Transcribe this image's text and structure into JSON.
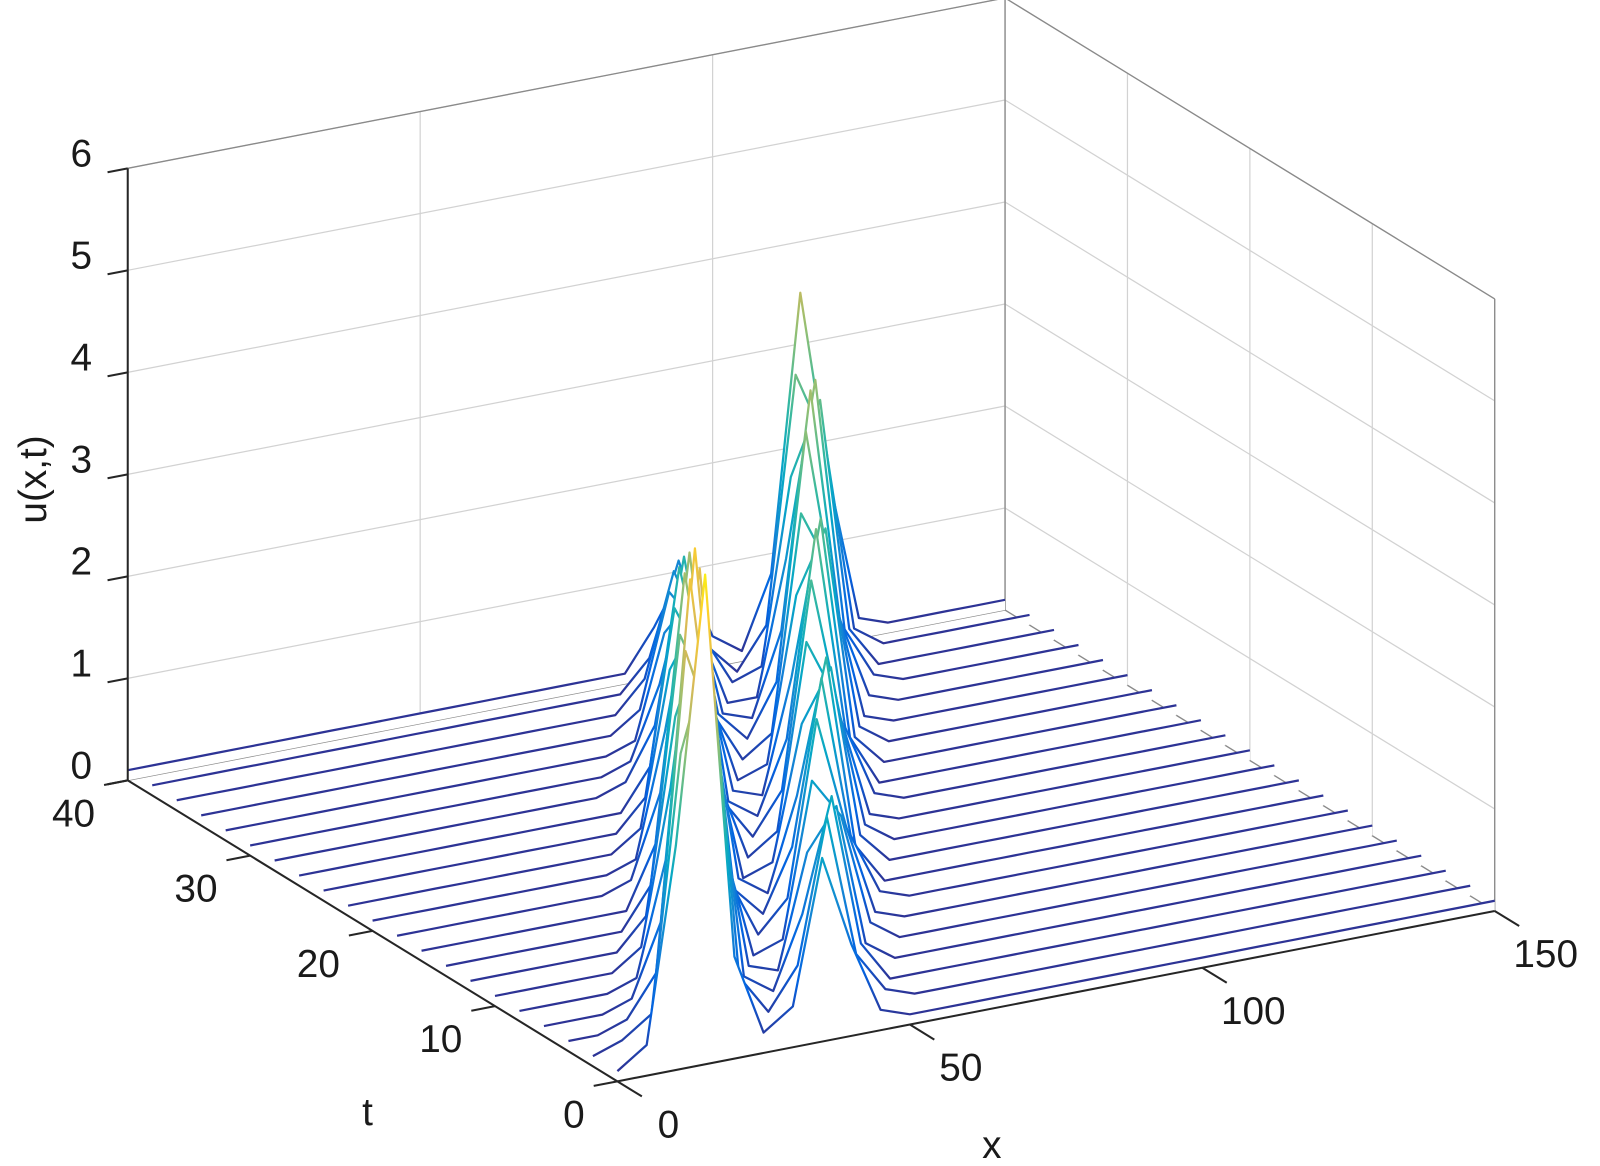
{
  "chart_data": {
    "type": "waterfall",
    "xlabel": "x",
    "ylabel": "t",
    "zlabel": "u(x,t)",
    "x": [
      0,
      5,
      10,
      15,
      20,
      25,
      30,
      35,
      40,
      45,
      50,
      55,
      60,
      65,
      70,
      75,
      80,
      85,
      90,
      95,
      100,
      105,
      110,
      115,
      120,
      125,
      130,
      135,
      140,
      145,
      150
    ],
    "t": [
      0,
      2,
      4,
      6,
      8,
      10,
      12,
      14,
      16,
      18,
      20,
      22,
      24,
      26,
      28,
      30,
      32,
      34,
      36,
      38,
      40
    ],
    "z": [
      [
        0.1,
        0.3,
        2.2,
        4.8,
        1,
        0.2,
        0.4,
        1.8,
        0.9,
        0.2,
        0.1,
        0.1,
        0.1,
        0.1,
        0.1,
        0.1,
        0.1,
        0.1,
        0.1,
        0.1,
        0.1,
        0.1,
        0.1,
        0.1,
        0.1,
        0.1,
        0.1,
        0.1,
        0.1,
        0.1,
        0.1
      ],
      [
        0.1,
        0.2,
        0.4,
        2.9,
        3.9,
        0.6,
        0.2,
        0.6,
        2,
        0.6,
        0.2,
        0.1,
        0.1,
        0.1,
        0.1,
        0.1,
        0.1,
        0.1,
        0.1,
        0.1,
        0.1,
        0.1,
        0.1,
        0.1,
        0.1,
        0.1,
        0.1,
        0.1,
        0.1,
        0.1,
        0.1
      ],
      [
        0.1,
        0.1,
        0.2,
        0.6,
        3.7,
        2.8,
        0.4,
        0.2,
        0.9,
        2,
        0.5,
        0.1,
        0.1,
        0.1,
        0.1,
        0.1,
        0.1,
        0.1,
        0.1,
        0.1,
        0.1,
        0.1,
        0.1,
        0.1,
        0.1,
        0.1,
        0.1,
        0.1,
        0.1,
        0.1,
        0.1
      ],
      [
        0.1,
        0.1,
        0.1,
        0.2,
        0.9,
        4.2,
        1.9,
        0.3,
        0.2,
        1.3,
        1.7,
        0.3,
        0.1,
        0.1,
        0.1,
        0.1,
        0.1,
        0.1,
        0.1,
        0.1,
        0.1,
        0.1,
        0.1,
        0.1,
        0.1,
        0.1,
        0.1,
        0.1,
        0.1,
        0.1,
        0.1
      ],
      [
        0.1,
        0.1,
        0.1,
        0.1,
        0.2,
        1.3,
        4.3,
        1.3,
        0.2,
        0.3,
        1.8,
        1.4,
        0.3,
        0.1,
        0.1,
        0.1,
        0.1,
        0.1,
        0.1,
        0.1,
        0.1,
        0.1,
        0.1,
        0.1,
        0.1,
        0.1,
        0.1,
        0.1,
        0.1,
        0.1,
        0.1
      ],
      [
        0.1,
        0.1,
        0.1,
        0.1,
        0.1,
        0.3,
        1.8,
        3.9,
        0.8,
        0.2,
        0.5,
        2.2,
        1.1,
        0.2,
        0.1,
        0.1,
        0.1,
        0.1,
        0.1,
        0.1,
        0.1,
        0.1,
        0.1,
        0.1,
        0.1,
        0.1,
        0.1,
        0.1,
        0.1,
        0.1,
        0.1
      ],
      [
        0.1,
        0.1,
        0.1,
        0.1,
        0.1,
        0.1,
        0.4,
        2.3,
        3.1,
        0.5,
        0.2,
        0.8,
        2.4,
        0.8,
        0.2,
        0.1,
        0.1,
        0.1,
        0.1,
        0.1,
        0.1,
        0.1,
        0.1,
        0.1,
        0.1,
        0.1,
        0.1,
        0.1,
        0.1,
        0.1,
        0.1
      ],
      [
        0.1,
        0.1,
        0.1,
        0.1,
        0.1,
        0.1,
        0.1,
        0.5,
        2.9,
        2.2,
        0.4,
        0.2,
        1.1,
        2.4,
        0.5,
        0.1,
        0.1,
        0.1,
        0.1,
        0.1,
        0.1,
        0.1,
        0.1,
        0.1,
        0.1,
        0.1,
        0.1,
        0.1,
        0.1,
        0.1,
        0.1
      ],
      [
        0.1,
        0.1,
        0.1,
        0.1,
        0.1,
        0.1,
        0.1,
        0.1,
        0.7,
        3.3,
        1.5,
        0.2,
        0.3,
        1.6,
        2.1,
        0.4,
        0.1,
        0.1,
        0.1,
        0.1,
        0.1,
        0.1,
        0.1,
        0.1,
        0.1,
        0.1,
        0.1,
        0.1,
        0.1,
        0.1,
        0.1
      ],
      [
        0.1,
        0.1,
        0.1,
        0.1,
        0.1,
        0.1,
        0.1,
        0.1,
        0.2,
        1,
        3.3,
        1,
        0.2,
        0.4,
        2.2,
        1.6,
        0.3,
        0.1,
        0.1,
        0.1,
        0.1,
        0.1,
        0.1,
        0.1,
        0.1,
        0.1,
        0.1,
        0.1,
        0.1,
        0.1,
        0.1
      ],
      [
        0.1,
        0.1,
        0.1,
        0.1,
        0.1,
        0.1,
        0.1,
        0.1,
        0.1,
        0.2,
        1.4,
        2.9,
        0.6,
        0.2,
        0.6,
        2.6,
        1.2,
        0.2,
        0.1,
        0.1,
        0.1,
        0.1,
        0.1,
        0.1,
        0.1,
        0.1,
        0.1,
        0.1,
        0.1,
        0.1,
        0.1
      ],
      [
        0.1,
        0.1,
        0.1,
        0.1,
        0.1,
        0.1,
        0.1,
        0.1,
        0.1,
        0.1,
        0.3,
        1.8,
        2.3,
        0.4,
        0.2,
        0.9,
        2.9,
        0.9,
        0.2,
        0.1,
        0.1,
        0.1,
        0.1,
        0.1,
        0.1,
        0.1,
        0.1,
        0.1,
        0.1,
        0.1,
        0.1
      ],
      [
        0.1,
        0.1,
        0.1,
        0.1,
        0.1,
        0.1,
        0.1,
        0.1,
        0.1,
        0.1,
        0.1,
        0.4,
        2.2,
        1.6,
        0.3,
        0.2,
        1.3,
        2.8,
        0.6,
        0.1,
        0.1,
        0.1,
        0.1,
        0.1,
        0.1,
        0.1,
        0.1,
        0.1,
        0.1,
        0.1,
        0.1
      ],
      [
        0.1,
        0.1,
        0.1,
        0.1,
        0.1,
        0.1,
        0.1,
        0.1,
        0.1,
        0.1,
        0.1,
        0.1,
        0.5,
        2.4,
        1.1,
        0.2,
        0.3,
        1.9,
        2.5,
        0.4,
        0.1,
        0.1,
        0.1,
        0.1,
        0.1,
        0.1,
        0.1,
        0.1,
        0.1,
        0.1,
        0.1
      ],
      [
        0.1,
        0.1,
        0.1,
        0.1,
        0.1,
        0.1,
        0.1,
        0.1,
        0.1,
        0.1,
        0.1,
        0.1,
        0.2,
        0.7,
        2.3,
        0.7,
        0.2,
        0.4,
        2.5,
        1.9,
        0.3,
        0.1,
        0.1,
        0.1,
        0.1,
        0.1,
        0.1,
        0.1,
        0.1,
        0.1,
        0.1
      ],
      [
        0.1,
        0.1,
        0.1,
        0.1,
        0.1,
        0.1,
        0.1,
        0.1,
        0.1,
        0.1,
        0.1,
        0.1,
        0.1,
        0.2,
        0.9,
        2,
        0.5,
        0.2,
        0.7,
        3.1,
        1.4,
        0.2,
        0.1,
        0.1,
        0.1,
        0.1,
        0.1,
        0.1,
        0.1,
        0.1,
        0.1
      ],
      [
        0.1,
        0.1,
        0.1,
        0.1,
        0.1,
        0.1,
        0.1,
        0.1,
        0.1,
        0.1,
        0.1,
        0.1,
        0.1,
        0.1,
        0.2,
        1.2,
        1.5,
        0.3,
        0.2,
        1,
        3.3,
        1,
        0.2,
        0.1,
        0.1,
        0.1,
        0.1,
        0.1,
        0.1,
        0.1,
        0.1
      ],
      [
        0.1,
        0.1,
        0.1,
        0.1,
        0.1,
        0.1,
        0.1,
        0.1,
        0.1,
        0.1,
        0.1,
        0.1,
        0.1,
        0.1,
        0.1,
        0.3,
        1.4,
        1,
        0.2,
        0.2,
        1.5,
        3.2,
        0.7,
        0.2,
        0.1,
        0.1,
        0.1,
        0.1,
        0.1,
        0.1,
        0.1
      ],
      [
        0.1,
        0.1,
        0.1,
        0.1,
        0.1,
        0.1,
        0.1,
        0.1,
        0.1,
        0.1,
        0.1,
        0.1,
        0.1,
        0.1,
        0.1,
        0.1,
        0.4,
        1.4,
        0.7,
        0.2,
        0.3,
        2.1,
        2.8,
        0.5,
        0.1,
        0.1,
        0.1,
        0.1,
        0.1,
        0.1,
        0.1
      ],
      [
        0.1,
        0.1,
        0.1,
        0.1,
        0.1,
        0.1,
        0.1,
        0.1,
        0.1,
        0.1,
        0.1,
        0.1,
        0.1,
        0.1,
        0.1,
        0.1,
        0.1,
        0.4,
        1.3,
        0.4,
        0.1,
        0.5,
        2.9,
        2.2,
        0.3,
        0.1,
        0.1,
        0.1,
        0.1,
        0.1,
        0.1
      ],
      [
        0.1,
        0.1,
        0.1,
        0.1,
        0.1,
        0.1,
        0.1,
        0.1,
        0.1,
        0.1,
        0.1,
        0.1,
        0.1,
        0.1,
        0.1,
        0.1,
        0.1,
        0.1,
        0.5,
        1,
        0.3,
        0.1,
        0.8,
        3.5,
        1.6,
        0.2,
        0.1,
        0.1,
        0.1,
        0.1,
        0.1
      ]
    ],
    "xlim": [
      0,
      150
    ],
    "ylim": [
      0,
      40
    ],
    "zlim": [
      0,
      6
    ],
    "xticks": [
      0,
      50,
      100,
      150
    ],
    "yticks": [
      0,
      10,
      20,
      30,
      40
    ],
    "zticks": [
      0,
      1,
      2,
      3,
      4,
      5,
      6
    ],
    "grid": true,
    "colormap": [
      "#352a87",
      "#0363e1",
      "#1485d4",
      "#06a7c6",
      "#38b99e",
      "#92bf73",
      "#d9ba56",
      "#fcce2e",
      "#f9fb0e"
    ],
    "clim": [
      0,
      5
    ]
  }
}
